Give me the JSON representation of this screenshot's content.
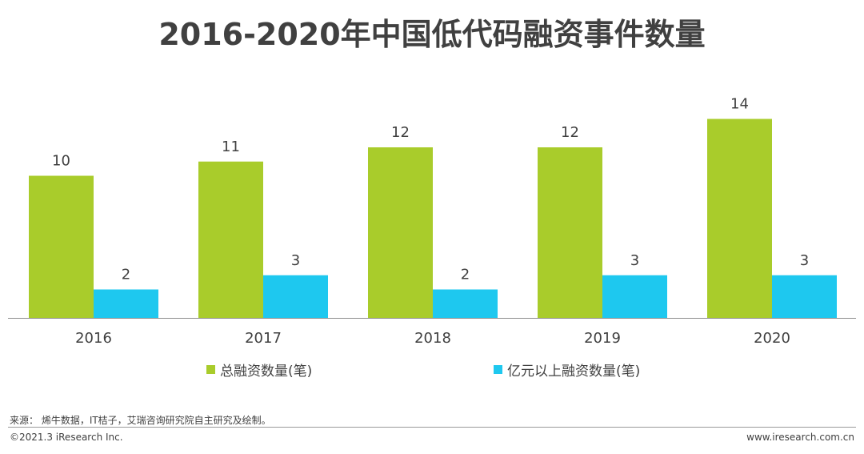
{
  "chart_data": {
    "type": "bar",
    "title": "2016-2020年中国低代码融资事件数量",
    "categories": [
      "2016",
      "2017",
      "2018",
      "2019",
      "2020"
    ],
    "series": [
      {
        "name": "总融资数量(笔)",
        "color": "#a9cc2b",
        "values": [
          10,
          11,
          12,
          12,
          14
        ]
      },
      {
        "name": "亿元以上融资数量(笔)",
        "color": "#1ec8ef",
        "values": [
          2,
          3,
          2,
          3,
          3
        ]
      }
    ],
    "ylim": [
      0,
      16
    ],
    "xlabel": "",
    "ylabel": ""
  },
  "footer": {
    "source": "来源：  烯牛数据，IT桔子，艾瑞咨询研究院自主研究及绘制。",
    "copyright": "©2021.3 iResearch Inc.",
    "website": "www.iresearch.com.cn"
  }
}
